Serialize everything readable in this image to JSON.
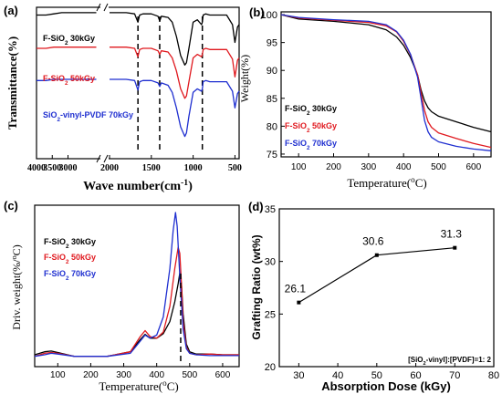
{
  "colors": {
    "black": "#000000",
    "red": "#e0191f",
    "blue": "#1f2fd0"
  },
  "chart_data": [
    {
      "panel": "(a)",
      "type": "line",
      "xlabel": "Wave number(cm-1)",
      "ylabel": "Transmittance(%)",
      "axis_break": [
        2000,
        2000
      ],
      "x_ticks": [
        "4000",
        "3500",
        "3000",
        "2000",
        "1500",
        "1000",
        "500"
      ],
      "dashed_lines_x": [
        1660,
        1400,
        890
      ],
      "series": [
        {
          "name": "F-SiO2 30kGy",
          "color": "#000000",
          "x": [
            4000,
            3700,
            3450,
            3200,
            3000,
            2100,
            2000,
            1800,
            1700,
            1660,
            1640,
            1600,
            1500,
            1420,
            1400,
            1380,
            1300,
            1250,
            1200,
            1150,
            1100,
            1080,
            1050,
            1000,
            950,
            900,
            890,
            880,
            850,
            800,
            700,
            600,
            530,
            500,
            470,
            450
          ],
          "y": [
            0.8,
            0.8,
            0.81,
            0.82,
            0.82,
            0.82,
            0.82,
            0.82,
            0.81,
            0.74,
            0.8,
            0.81,
            0.81,
            0.79,
            0.75,
            0.79,
            0.78,
            0.74,
            0.62,
            0.46,
            0.38,
            0.4,
            0.52,
            0.74,
            0.76,
            0.72,
            0.74,
            0.8,
            0.81,
            0.8,
            0.8,
            0.8,
            0.72,
            0.57,
            0.7,
            0.72
          ]
        },
        {
          "name": "F-SiO2 50kGy",
          "color": "#e0191f",
          "x": [
            4000,
            3700,
            3450,
            3200,
            3000,
            2100,
            2000,
            1800,
            1700,
            1660,
            1640,
            1600,
            1500,
            1420,
            1400,
            1380,
            1300,
            1250,
            1200,
            1150,
            1100,
            1080,
            1050,
            1000,
            950,
            900,
            890,
            880,
            850,
            800,
            700,
            600,
            530,
            500,
            470,
            450
          ],
          "y": [
            0.52,
            0.52,
            0.53,
            0.53,
            0.53,
            0.53,
            0.53,
            0.53,
            0.52,
            0.45,
            0.51,
            0.52,
            0.52,
            0.5,
            0.47,
            0.5,
            0.49,
            0.44,
            0.33,
            0.18,
            0.1,
            0.12,
            0.24,
            0.44,
            0.47,
            0.45,
            0.47,
            0.51,
            0.52,
            0.51,
            0.51,
            0.51,
            0.43,
            0.28,
            0.42,
            0.44
          ]
        },
        {
          "name": "SiO2-vinyl-PVDF 70kGy",
          "color": "#1f2fd0",
          "x": [
            4000,
            3700,
            3450,
            3200,
            3000,
            2100,
            2000,
            1800,
            1700,
            1660,
            1640,
            1600,
            1500,
            1420,
            1400,
            1380,
            1300,
            1250,
            1200,
            1150,
            1100,
            1080,
            1050,
            1000,
            950,
            900,
            890,
            880,
            850,
            800,
            700,
            600,
            530,
            500,
            470,
            450
          ],
          "y": [
            0.25,
            0.25,
            0.26,
            0.26,
            0.26,
            0.26,
            0.26,
            0.26,
            0.25,
            0.17,
            0.24,
            0.25,
            0.25,
            0.23,
            0.2,
            0.23,
            0.21,
            0.15,
            0.02,
            -0.14,
            -0.22,
            -0.19,
            -0.05,
            0.15,
            0.18,
            0.16,
            0.18,
            0.24,
            0.25,
            0.24,
            0.24,
            0.24,
            0.16,
            0.02,
            0.14,
            0.16
          ]
        }
      ]
    },
    {
      "panel": "(b)",
      "type": "line",
      "xlabel": "Temperature(oC)",
      "ylabel": "Weight(%)",
      "xlim": [
        50,
        650
      ],
      "ylim": [
        74.5,
        100.5
      ],
      "x_ticks": [
        100,
        200,
        300,
        400,
        500,
        600
      ],
      "y_ticks": [
        75,
        80,
        85,
        90,
        95,
        100
      ],
      "series": [
        {
          "name": "F-SiO2 30kGy",
          "color": "#000000",
          "x": [
            50,
            100,
            200,
            300,
            350,
            380,
            400,
            420,
            440,
            450,
            460,
            470,
            480,
            500,
            550,
            600,
            650
          ],
          "y": [
            100,
            99.2,
            98.8,
            98.2,
            97.3,
            96.0,
            94.5,
            92.3,
            89.2,
            86.5,
            84.5,
            83.3,
            82.6,
            81.8,
            80.8,
            79.8,
            79.0
          ]
        },
        {
          "name": "F-SiO2 50kGy",
          "color": "#e0191f",
          "x": [
            50,
            100,
            200,
            300,
            350,
            380,
            400,
            420,
            440,
            450,
            460,
            470,
            480,
            500,
            550,
            600,
            650
          ],
          "y": [
            100,
            99.4,
            99.0,
            98.6,
            98.0,
            96.9,
            95.2,
            92.8,
            89.2,
            86.0,
            82.8,
            80.8,
            79.8,
            78.8,
            77.8,
            76.9,
            76.2
          ]
        },
        {
          "name": "F-SiO2 70kGy",
          "color": "#1f2fd0",
          "x": [
            50,
            100,
            200,
            300,
            350,
            380,
            400,
            420,
            440,
            450,
            460,
            470,
            480,
            500,
            550,
            600,
            650
          ],
          "y": [
            100,
            99.5,
            99.1,
            98.8,
            98.2,
            97.0,
            95.4,
            92.9,
            88.8,
            85.0,
            81.0,
            79.0,
            78.0,
            77.2,
            76.4,
            75.9,
            75.6
          ]
        }
      ]
    },
    {
      "panel": "(c)",
      "type": "line",
      "xlabel": "Temperature(oC)",
      "ylabel": "Driv. weight(%/oC)",
      "xlim": [
        30,
        650
      ],
      "ylim": [
        0,
        1
      ],
      "x_ticks": [
        100,
        200,
        300,
        400,
        500,
        600
      ],
      "dashed_lines_x": [
        470
      ],
      "series": [
        {
          "name": "F-SiO2 30kGy",
          "color": "#000000",
          "x": [
            30,
            60,
            80,
            100,
            150,
            250,
            320,
            350,
            365,
            380,
            400,
            420,
            440,
            455,
            465,
            470,
            475,
            480,
            490,
            500,
            520,
            560,
            600,
            650
          ],
          "y": [
            0.03,
            0.05,
            0.055,
            0.045,
            0.02,
            0.02,
            0.05,
            0.13,
            0.165,
            0.14,
            0.14,
            0.17,
            0.25,
            0.38,
            0.5,
            0.57,
            0.5,
            0.3,
            0.1,
            0.05,
            0.035,
            0.035,
            0.03,
            0.03
          ]
        },
        {
          "name": "F-SiO2 50kGy",
          "color": "#e0191f",
          "x": [
            30,
            60,
            80,
            100,
            150,
            250,
            320,
            350,
            365,
            380,
            400,
            420,
            440,
            455,
            465,
            470,
            475,
            480,
            490,
            500,
            520,
            560,
            600,
            650
          ],
          "y": [
            0.02,
            0.04,
            0.045,
            0.04,
            0.02,
            0.02,
            0.05,
            0.15,
            0.19,
            0.15,
            0.14,
            0.18,
            0.35,
            0.6,
            0.74,
            0.7,
            0.5,
            0.25,
            0.08,
            0.04,
            0.03,
            0.035,
            0.03,
            0.03
          ]
        },
        {
          "name": "F-SiO2 70kGy",
          "color": "#1f2fd0",
          "x": [
            30,
            60,
            80,
            100,
            150,
            250,
            320,
            350,
            365,
            380,
            400,
            420,
            440,
            450,
            457,
            462,
            470,
            480,
            490,
            500,
            520,
            560,
            600,
            650
          ],
          "y": [
            0.02,
            0.03,
            0.04,
            0.035,
            0.02,
            0.02,
            0.04,
            0.12,
            0.16,
            0.14,
            0.16,
            0.28,
            0.6,
            0.85,
            0.97,
            0.88,
            0.55,
            0.2,
            0.07,
            0.04,
            0.03,
            0.025,
            0.025,
            0.025
          ]
        }
      ]
    },
    {
      "panel": "(d)",
      "type": "line",
      "xlabel": "Absorption Dose (kGy)",
      "ylabel": "Grafting Ratio (wt%)",
      "xlim": [
        25,
        80
      ],
      "ylim": [
        20,
        35
      ],
      "x_ticks": [
        30,
        40,
        50,
        60,
        70,
        80
      ],
      "y_ticks": [
        20,
        25,
        30,
        35
      ],
      "annotation": "[SiO2-vinyl]:[PVDF]=1: 2",
      "x": [
        30,
        50,
        70
      ],
      "y": [
        26.1,
        30.6,
        31.3
      ],
      "data_labels": [
        "26.1",
        "30.6",
        "31.3"
      ]
    }
  ]
}
